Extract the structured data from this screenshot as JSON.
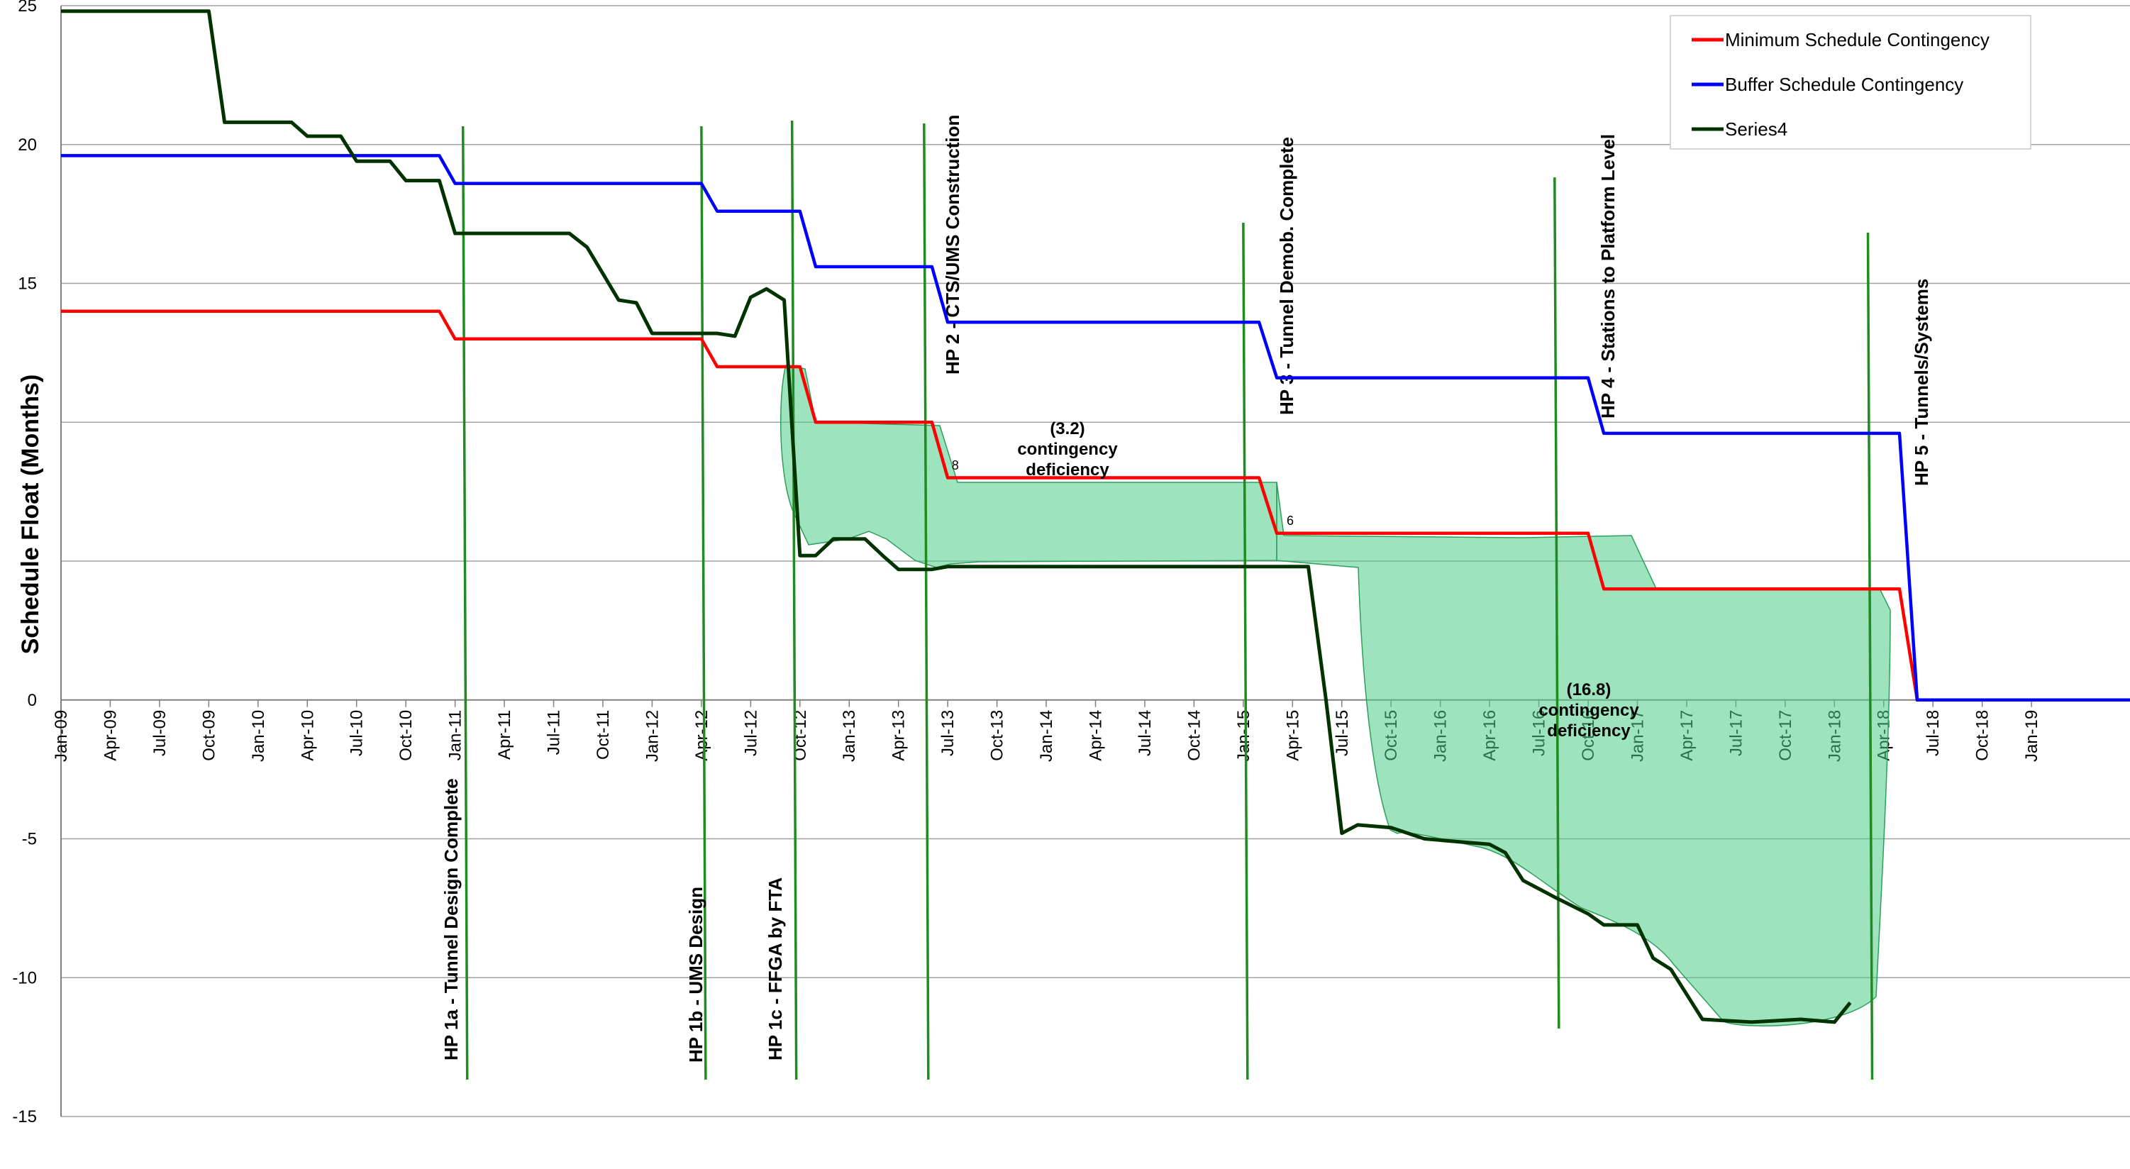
{
  "chart_data": {
    "type": "line",
    "ylabel": "Schedule Float (Months)",
    "ylim": [
      -15,
      25
    ],
    "yticks": [
      25,
      20,
      15,
      "",
      "",
      0,
      -5,
      -10,
      -15
    ],
    "xlim": [
      2009.0,
      2019.5
    ],
    "x_ticks": [
      {
        "t": 2009.0,
        "label": "Jan-09"
      },
      {
        "t": 2009.25,
        "label": "Apr-09"
      },
      {
        "t": 2009.5,
        "label": "Jul-09"
      },
      {
        "t": 2009.75,
        "label": "Oct-09"
      },
      {
        "t": 2010.0,
        "label": "Jan-10"
      },
      {
        "t": 2010.25,
        "label": "Apr-10"
      },
      {
        "t": 2010.5,
        "label": "Jul-10"
      },
      {
        "t": 2010.75,
        "label": "Oct-10"
      },
      {
        "t": 2011.0,
        "label": "Jan-11"
      },
      {
        "t": 2011.25,
        "label": "Apr-11"
      },
      {
        "t": 2011.5,
        "label": "Jul-11"
      },
      {
        "t": 2011.75,
        "label": "Oct-11"
      },
      {
        "t": 2012.0,
        "label": "Jan-12"
      },
      {
        "t": 2012.25,
        "label": "Apr-12"
      },
      {
        "t": 2012.5,
        "label": "Jul-12"
      },
      {
        "t": 2012.75,
        "label": "Oct-12"
      },
      {
        "t": 2013.0,
        "label": "Jan-13"
      },
      {
        "t": 2013.25,
        "label": "Apr-13"
      },
      {
        "t": 2013.5,
        "label": "Jul-13"
      },
      {
        "t": 2013.75,
        "label": "Oct-13"
      },
      {
        "t": 2014.0,
        "label": "Jan-14"
      },
      {
        "t": 2014.25,
        "label": "Apr-14"
      },
      {
        "t": 2014.5,
        "label": "Jul-14"
      },
      {
        "t": 2014.75,
        "label": "Oct-14"
      },
      {
        "t": 2015.0,
        "label": "Jan-15"
      },
      {
        "t": 2015.25,
        "label": "Apr-15"
      },
      {
        "t": 2015.5,
        "label": "Jul-15"
      },
      {
        "t": 2015.75,
        "label": "Oct-15"
      },
      {
        "t": 2016.0,
        "label": "Jan-16"
      },
      {
        "t": 2016.25,
        "label": "Apr-16"
      },
      {
        "t": 2016.5,
        "label": "Jul-16"
      },
      {
        "t": 2016.75,
        "label": "Oct-16"
      },
      {
        "t": 2017.0,
        "label": "Jan-17"
      },
      {
        "t": 2017.25,
        "label": "Apr-17"
      },
      {
        "t": 2017.5,
        "label": "Jul-17"
      },
      {
        "t": 2017.75,
        "label": "Oct-17"
      },
      {
        "t": 2018.0,
        "label": "Jan-18"
      },
      {
        "t": 2018.25,
        "label": "Apr-18"
      },
      {
        "t": 2018.5,
        "label": "Jul-18"
      },
      {
        "t": 2018.75,
        "label": "Oct-18"
      },
      {
        "t": 2019.0,
        "label": "Jan-19"
      }
    ],
    "grid": true,
    "legend_position": "top-right",
    "series": [
      {
        "name": "Minimum Schedule Contingency",
        "color": "#ff0000",
        "points": [
          [
            2009.0,
            14
          ],
          [
            2010.92,
            14
          ],
          [
            2011.0,
            13
          ],
          [
            2012.25,
            13
          ],
          [
            2012.33,
            12
          ],
          [
            2012.75,
            12
          ],
          [
            2012.83,
            10
          ],
          [
            2013.42,
            10
          ],
          [
            2013.5,
            8
          ],
          [
            2015.08,
            8
          ],
          [
            2015.17,
            6
          ],
          [
            2016.75,
            6
          ],
          [
            2016.83,
            4
          ],
          [
            2018.33,
            4
          ],
          [
            2018.42,
            0
          ],
          [
            2019.5,
            0
          ]
        ]
      },
      {
        "name": "Buffer Schedule Contingency",
        "color": "#0000ff",
        "points": [
          [
            2009.0,
            19.6
          ],
          [
            2010.92,
            19.6
          ],
          [
            2011.0,
            18.6
          ],
          [
            2012.25,
            18.6
          ],
          [
            2012.33,
            17.6
          ],
          [
            2012.75,
            17.6
          ],
          [
            2012.83,
            15.6
          ],
          [
            2013.42,
            15.6
          ],
          [
            2013.5,
            13.6
          ],
          [
            2015.08,
            13.6
          ],
          [
            2015.17,
            11.6
          ],
          [
            2016.75,
            11.6
          ],
          [
            2016.83,
            9.6
          ],
          [
            2018.33,
            9.6
          ],
          [
            2018.42,
            0
          ],
          [
            2019.5,
            0
          ]
        ]
      },
      {
        "name": "Series4",
        "color": "#003300",
        "points": [
          [
            2009.0,
            24.8
          ],
          [
            2009.75,
            24.8
          ],
          [
            2009.83,
            20.8
          ],
          [
            2010.17,
            20.8
          ],
          [
            2010.25,
            20.3
          ],
          [
            2010.42,
            20.3
          ],
          [
            2010.5,
            19.4
          ],
          [
            2010.67,
            19.4
          ],
          [
            2010.75,
            18.7
          ],
          [
            2010.92,
            18.7
          ],
          [
            2011.0,
            16.8
          ],
          [
            2011.58,
            16.8
          ],
          [
            2011.67,
            16.3
          ],
          [
            2011.83,
            14.4
          ],
          [
            2011.92,
            14.3
          ],
          [
            2012.0,
            13.2
          ],
          [
            2012.33,
            13.2
          ],
          [
            2012.42,
            13.1
          ],
          [
            2012.5,
            14.5
          ],
          [
            2012.58,
            14.8
          ],
          [
            2012.67,
            14.4
          ],
          [
            2012.75,
            5.2
          ],
          [
            2012.83,
            5.2
          ],
          [
            2012.92,
            5.8
          ],
          [
            2013.08,
            5.8
          ],
          [
            2013.17,
            5.2
          ],
          [
            2013.25,
            4.7
          ],
          [
            2013.42,
            4.7
          ],
          [
            2013.5,
            4.8
          ],
          [
            2015.33,
            4.8
          ],
          [
            2015.42,
            0
          ],
          [
            2015.5,
            -4.8
          ],
          [
            2015.58,
            -4.5
          ],
          [
            2015.75,
            -4.6
          ],
          [
            2015.92,
            -5
          ],
          [
            2016.08,
            -5.1
          ],
          [
            2016.25,
            -5.2
          ],
          [
            2016.33,
            -5.5
          ],
          [
            2016.42,
            -6.5
          ],
          [
            2016.58,
            -7.1
          ],
          [
            2016.75,
            -7.7
          ],
          [
            2016.83,
            -8.1
          ],
          [
            2017.0,
            -8.1
          ],
          [
            2017.08,
            -9.3
          ],
          [
            2017.17,
            -9.7
          ],
          [
            2017.33,
            -11.5
          ],
          [
            2017.58,
            -11.6
          ],
          [
            2017.83,
            -11.5
          ],
          [
            2018.0,
            -11.6
          ],
          [
            2018.08,
            -10.9
          ]
        ]
      }
    ],
    "milestones": [
      {
        "label": "HP 1a - Tunnel Design Complete",
        "t": 2011.04
      },
      {
        "label": "HP 1b - UMS Design",
        "t": 2012.25
      },
      {
        "label": "HP 1c - FFGA by FTA",
        "t": 2012.71
      },
      {
        "label": "HP 2 - CTS/UMS Construction",
        "t": 2013.38
      },
      {
        "label": "HP 3 - Tunnel Demob. Complete",
        "t": 2015.0
      },
      {
        "label": "HP 4 - Stations to Platform Level",
        "t": 2016.58
      },
      {
        "label": "HP 5 - Tunnels/Systems",
        "t": 2018.17
      }
    ],
    "annotations": [
      {
        "id": "a1",
        "lines": [
          "(3.2)",
          "contingency",
          "deficiency"
        ]
      },
      {
        "id": "a2",
        "lines": [
          "(16.8)",
          "contingency",
          "deficiency"
        ]
      }
    ],
    "step_labels": [
      {
        "text": "8",
        "t": 2013.52,
        "y": 8.3
      },
      {
        "text": "6",
        "t": 2015.22,
        "y": 6.3
      }
    ]
  }
}
